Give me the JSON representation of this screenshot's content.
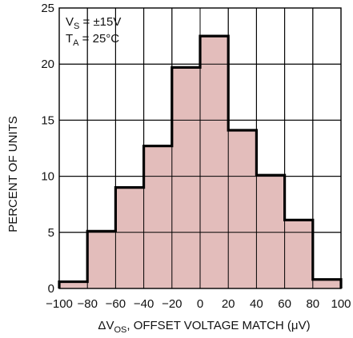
{
  "chart_data": {
    "type": "bar",
    "subtype": "histogram",
    "bin_edges": [
      -100,
      -80,
      -60,
      -40,
      -20,
      0,
      20,
      40,
      60,
      80,
      100
    ],
    "values": [
      0.6,
      5.1,
      9.0,
      12.7,
      19.7,
      22.5,
      14.1,
      10.1,
      6.1,
      0.8
    ],
    "xlim": [
      -100,
      100
    ],
    "ylim": [
      0,
      25
    ],
    "x_ticks": [
      "−100",
      "−80",
      "−60",
      "−40",
      "−20",
      "0",
      "20",
      "40",
      "60",
      "80",
      "100"
    ],
    "y_ticks": [
      "0",
      "5",
      "10",
      "15",
      "20",
      "25"
    ],
    "ylabel": "PERCENT OF UNITS",
    "xlabel": {
      "prefix": "ΔV",
      "subscript": "OS",
      "suffix": ", OFFSET VOLTAGE MATCH (μV)"
    },
    "grid": true,
    "annotations": [
      {
        "prefix": "V",
        "subscript": "S",
        "suffix": " = ±15V"
      },
      {
        "prefix": "T",
        "subscript": "A",
        "suffix": " = 25°C"
      }
    ],
    "colors": {
      "fill": "#e3bdbb",
      "outline": "#000000",
      "grid": "#000000"
    }
  }
}
